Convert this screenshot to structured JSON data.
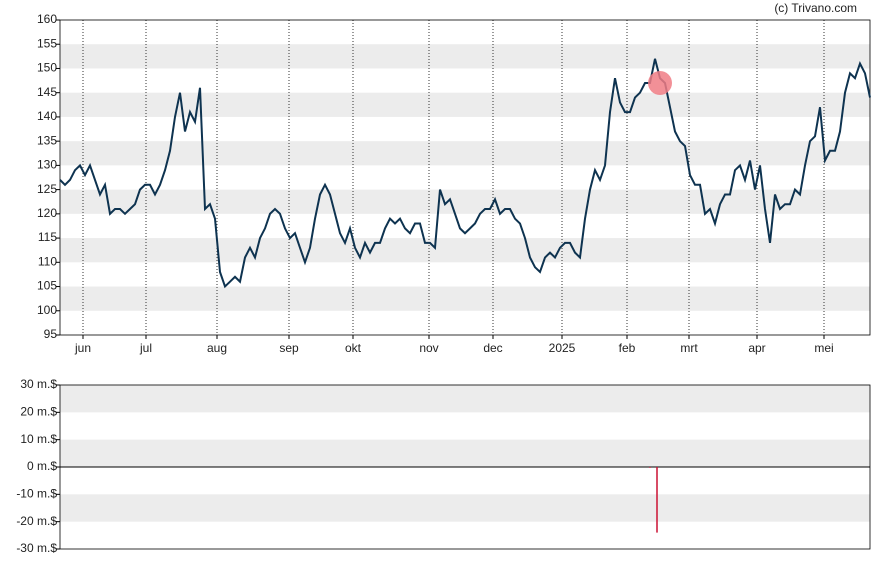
{
  "source": "(c) Trivano.com",
  "chart_data": [
    {
      "type": "line",
      "color": "#0e3350",
      "xlim": [
        0,
        162
      ],
      "ylim": [
        95,
        160
      ],
      "yticks": [
        95,
        100,
        105,
        110,
        115,
        120,
        125,
        130,
        135,
        140,
        145,
        150,
        155,
        160
      ],
      "xticks": [
        {
          "value": 4.6,
          "label": "jun"
        },
        {
          "value": 17.2,
          "label": "jul"
        },
        {
          "value": 31.4,
          "label": "aug"
        },
        {
          "value": 45.8,
          "label": "sep"
        },
        {
          "value": 58.6,
          "label": "okt"
        },
        {
          "value": 73.8,
          "label": "nov"
        },
        {
          "value": 86.6,
          "label": "dec"
        },
        {
          "value": 100.4,
          "label": "2025"
        },
        {
          "value": 113.4,
          "label": "feb"
        },
        {
          "value": 125.8,
          "label": "mrt"
        },
        {
          "value": 139.4,
          "label": "apr"
        },
        {
          "value": 152.8,
          "label": "mei"
        }
      ],
      "x": [
        0,
        1,
        2,
        3,
        4,
        5,
        6,
        7,
        8,
        9,
        10,
        11,
        12,
        13,
        14,
        15,
        16,
        17,
        18,
        19,
        20,
        21,
        22,
        23,
        24,
        25,
        26,
        27,
        28,
        29,
        30,
        31,
        32,
        33,
        34,
        35,
        36,
        37,
        38,
        39,
        40,
        41,
        42,
        43,
        44,
        45,
        46,
        47,
        48,
        49,
        50,
        51,
        52,
        53,
        54,
        55,
        56,
        57,
        58,
        59,
        60,
        61,
        62,
        63,
        64,
        65,
        66,
        67,
        68,
        69,
        70,
        71,
        72,
        73,
        74,
        75,
        76,
        77,
        78,
        79,
        80,
        81,
        82,
        83,
        84,
        85,
        86,
        87,
        88,
        89,
        90,
        91,
        92,
        93,
        94,
        95,
        96,
        97,
        98,
        99,
        100,
        101,
        102,
        103,
        104,
        105,
        106,
        107,
        108,
        109,
        110,
        111,
        112,
        113,
        114,
        115,
        116,
        117,
        118,
        119,
        120,
        121,
        122,
        123,
        124,
        125,
        126,
        127,
        128,
        129,
        130,
        131,
        132,
        133,
        134,
        135,
        136,
        137,
        138,
        139,
        140,
        141,
        142,
        143,
        144,
        145,
        146,
        147,
        148,
        149,
        150,
        151,
        152,
        153,
        154,
        155,
        156,
        157,
        158,
        159,
        160,
        161,
        162
      ],
      "values": [
        127,
        126,
        127,
        129,
        130,
        128,
        130,
        127,
        124,
        126,
        120,
        121,
        121,
        120,
        121,
        122,
        125,
        126,
        126,
        124,
        126,
        129,
        133,
        140,
        145,
        137,
        141,
        139,
        146,
        121,
        122,
        119,
        108,
        105,
        106,
        107,
        106,
        111,
        113,
        111,
        115,
        117,
        120,
        121,
        120,
        117,
        115,
        116,
        113,
        110,
        113,
        119,
        124,
        126,
        124,
        120,
        116,
        114,
        117,
        113,
        111,
        114,
        112,
        114,
        114,
        117,
        119,
        118,
        119,
        117,
        116,
        118,
        118,
        114,
        114,
        113,
        125,
        122,
        123,
        120,
        117,
        116,
        117,
        118,
        120,
        121,
        121,
        123,
        120,
        121,
        121,
        119,
        118,
        115,
        111,
        109,
        108,
        111,
        112,
        111,
        113,
        114,
        114,
        112,
        111,
        119,
        125,
        129,
        127,
        130,
        141,
        148,
        143,
        141,
        141,
        144,
        145,
        147,
        147,
        152,
        148,
        147,
        142,
        137,
        135,
        134,
        128,
        126,
        126,
        120,
        121,
        118,
        122,
        124,
        124,
        129,
        130,
        127,
        131,
        125,
        130,
        121,
        114,
        124,
        121,
        122,
        122,
        125,
        124,
        130,
        135,
        136,
        142,
        131,
        133,
        133,
        137,
        145,
        149,
        148,
        151,
        149,
        144
      ],
      "markers": [
        {
          "x": 120,
          "y": 147,
          "color": "#f07c85"
        }
      ]
    },
    {
      "type": "bar",
      "color": "#cc1133",
      "xlim": [
        0,
        162
      ],
      "ylim": [
        -30,
        30
      ],
      "yticks": [
        {
          "value": -30,
          "label": "-30 m.$"
        },
        {
          "value": -20,
          "label": "-20 m.$"
        },
        {
          "value": -10,
          "label": "-10 m.$"
        },
        {
          "value": 0,
          "label": "0 m.$"
        },
        {
          "value": 10,
          "label": "10 m.$"
        },
        {
          "value": 20,
          "label": "20 m.$"
        },
        {
          "value": 30,
          "label": "30 m.$"
        }
      ],
      "x": [
        118,
        119.4
      ],
      "values": [
        -0.3,
        -24
      ]
    }
  ]
}
